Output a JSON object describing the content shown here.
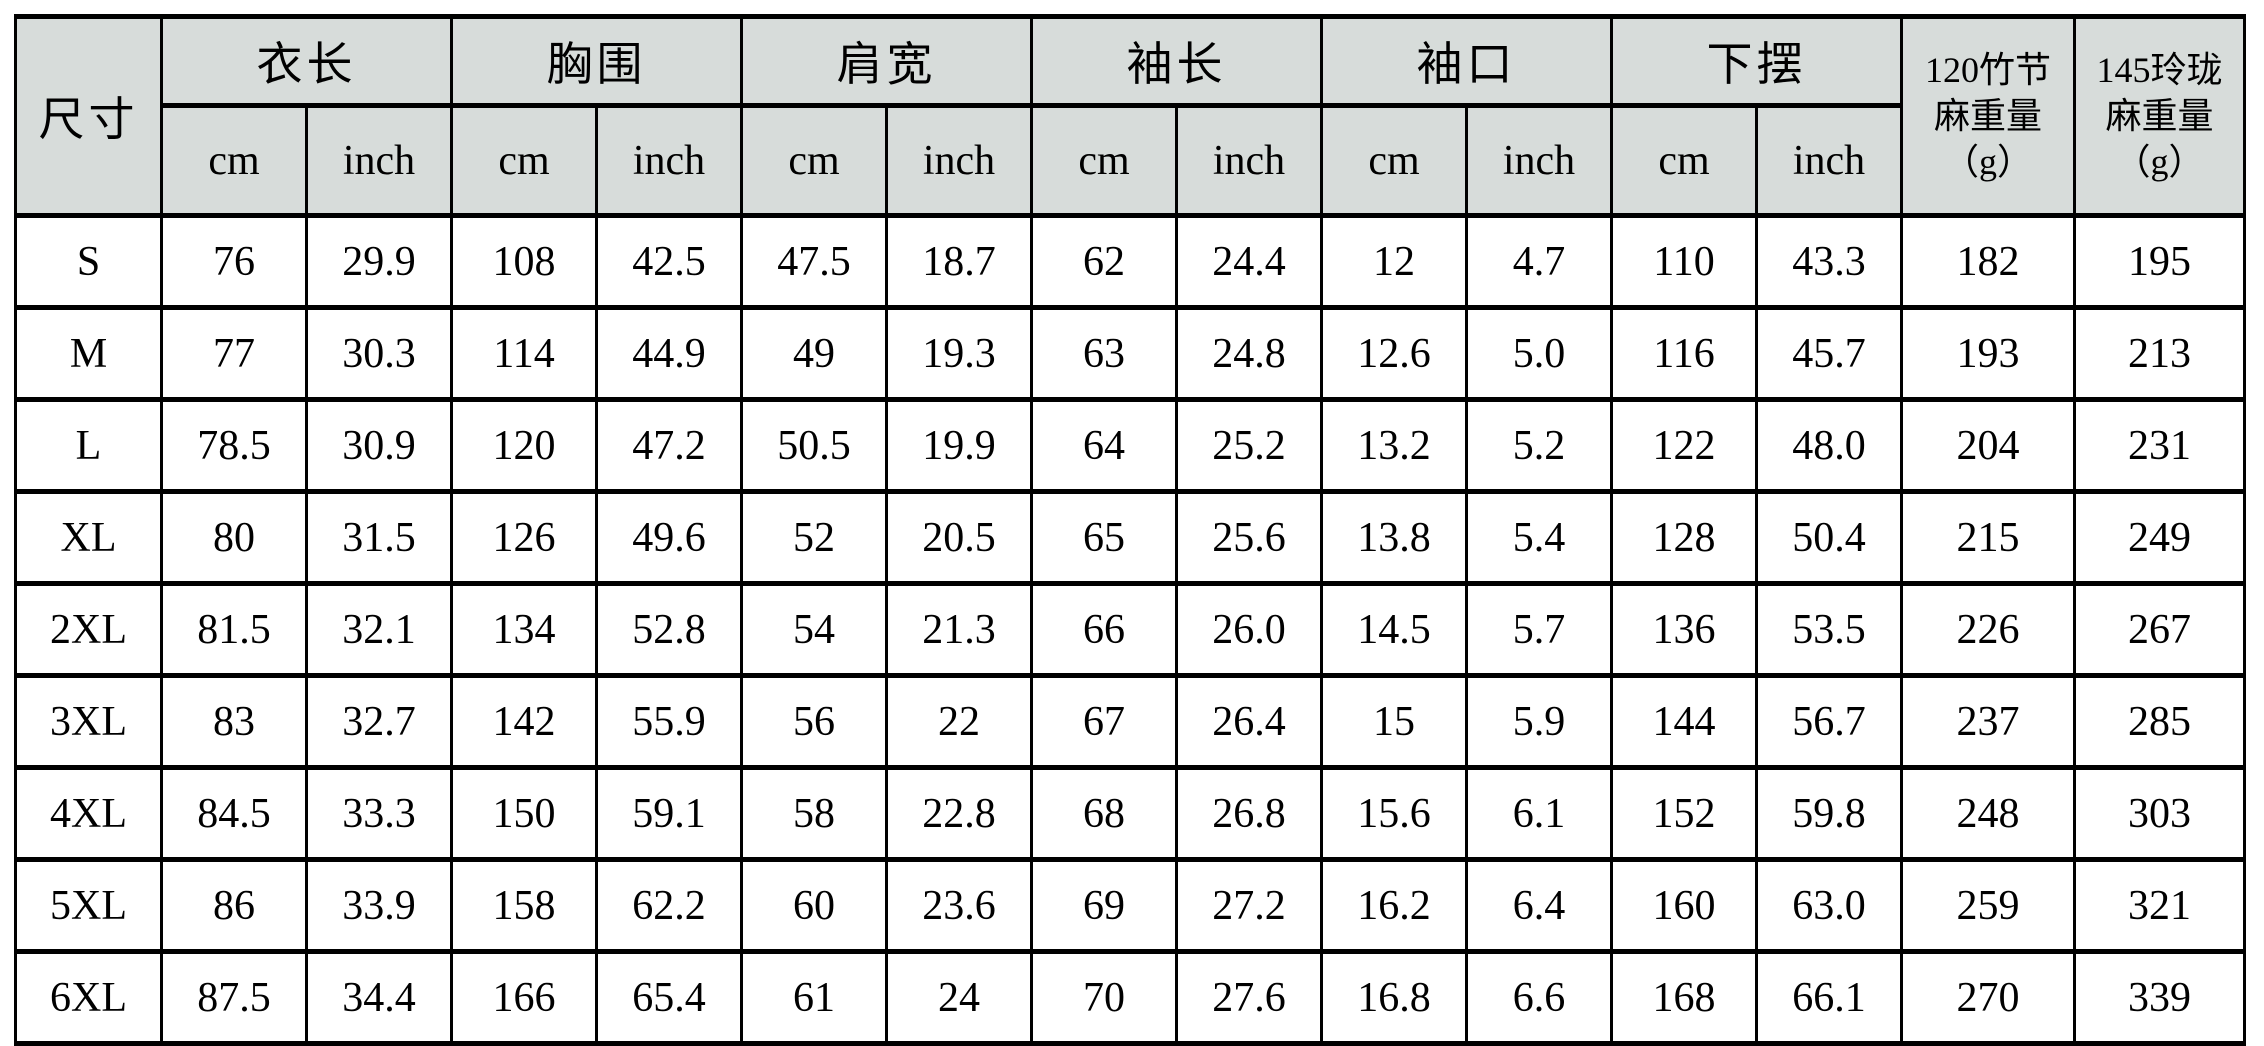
{
  "table": {
    "size_header": "尺寸",
    "units": {
      "cm": "cm",
      "inch": "inch"
    },
    "groups": [
      {
        "label": "衣长"
      },
      {
        "label": "胸围"
      },
      {
        "label": "肩宽"
      },
      {
        "label": "袖长"
      },
      {
        "label": "袖口"
      },
      {
        "label": "下摆"
      }
    ],
    "weight_cols": [
      {
        "lines": [
          "120竹节",
          "麻重量",
          "（g）"
        ]
      },
      {
        "lines": [
          "145玲珑",
          "麻重量",
          "（g）"
        ]
      }
    ],
    "rows": [
      {
        "size": "S",
        "values": [
          "76",
          "29.9",
          "108",
          "42.5",
          "47.5",
          "18.7",
          "62",
          "24.4",
          "12",
          "4.7",
          "110",
          "43.3",
          "182",
          "195"
        ]
      },
      {
        "size": "M",
        "values": [
          "77",
          "30.3",
          "114",
          "44.9",
          "49",
          "19.3",
          "63",
          "24.8",
          "12.6",
          "5.0",
          "116",
          "45.7",
          "193",
          "213"
        ]
      },
      {
        "size": "L",
        "values": [
          "78.5",
          "30.9",
          "120",
          "47.2",
          "50.5",
          "19.9",
          "64",
          "25.2",
          "13.2",
          "5.2",
          "122",
          "48.0",
          "204",
          "231"
        ]
      },
      {
        "size": "XL",
        "values": [
          "80",
          "31.5",
          "126",
          "49.6",
          "52",
          "20.5",
          "65",
          "25.6",
          "13.8",
          "5.4",
          "128",
          "50.4",
          "215",
          "249"
        ]
      },
      {
        "size": "2XL",
        "values": [
          "81.5",
          "32.1",
          "134",
          "52.8",
          "54",
          "21.3",
          "66",
          "26.0",
          "14.5",
          "5.7",
          "136",
          "53.5",
          "226",
          "267"
        ]
      },
      {
        "size": "3XL",
        "values": [
          "83",
          "32.7",
          "142",
          "55.9",
          "56",
          "22",
          "67",
          "26.4",
          "15",
          "5.9",
          "144",
          "56.7",
          "237",
          "285"
        ]
      },
      {
        "size": "4XL",
        "values": [
          "84.5",
          "33.3",
          "150",
          "59.1",
          "58",
          "22.8",
          "68",
          "26.8",
          "15.6",
          "6.1",
          "152",
          "59.8",
          "248",
          "303"
        ]
      },
      {
        "size": "5XL",
        "values": [
          "86",
          "33.9",
          "158",
          "62.2",
          "60",
          "23.6",
          "69",
          "27.2",
          "16.2",
          "6.4",
          "160",
          "63.0",
          "259",
          "321"
        ]
      },
      {
        "size": "6XL",
        "values": [
          "87.5",
          "34.4",
          "166",
          "65.4",
          "61",
          "24",
          "70",
          "27.6",
          "16.8",
          "6.6",
          "168",
          "66.1",
          "270",
          "339"
        ]
      }
    ]
  }
}
